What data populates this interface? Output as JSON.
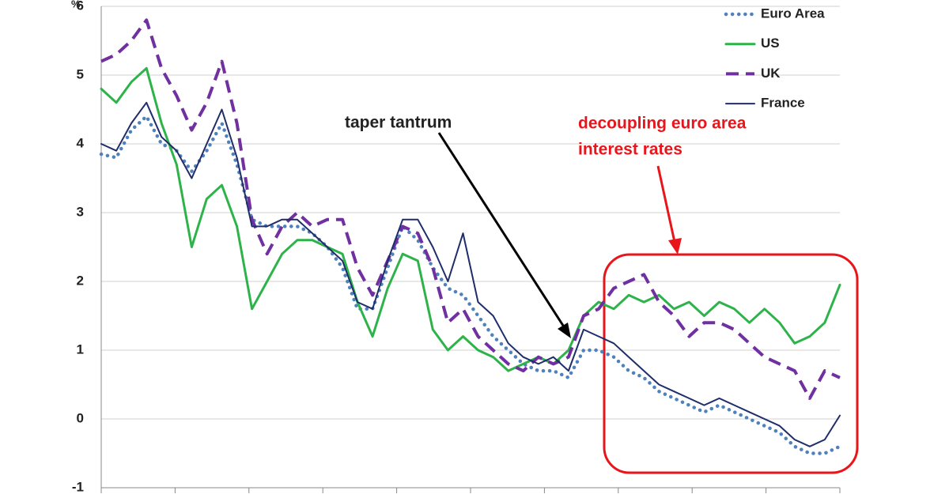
{
  "chart_data": {
    "type": "line",
    "ylabel": "%",
    "ylim": [
      -1,
      6
    ],
    "yticks": [
      -1,
      0,
      1,
      2,
      3,
      4,
      5,
      6
    ],
    "grid": true,
    "legend": "upper right",
    "series": [
      {
        "name": "Euro Area",
        "color": "#4f81bd",
        "style": "dotted",
        "values": [
          3.85,
          3.8,
          4.2,
          4.4,
          4.0,
          3.9,
          3.6,
          3.9,
          4.3,
          3.7,
          2.9,
          2.8,
          2.8,
          2.8,
          2.7,
          2.5,
          2.2,
          1.6,
          1.6,
          2.2,
          2.8,
          2.6,
          2.2,
          1.9,
          1.8,
          1.5,
          1.2,
          1.0,
          0.8,
          0.7,
          0.7,
          0.6,
          1.0,
          1.0,
          0.9,
          0.7,
          0.6,
          0.4,
          0.3,
          0.2,
          0.1,
          0.2,
          0.1,
          0.0,
          -0.1,
          -0.2,
          -0.4,
          -0.5,
          -0.5,
          -0.4
        ]
      },
      {
        "name": "US",
        "color": "#2db34a",
        "style": "solid",
        "values": [
          4.8,
          4.6,
          4.9,
          5.1,
          4.3,
          3.7,
          2.5,
          3.2,
          3.4,
          2.8,
          1.6,
          2.0,
          2.4,
          2.6,
          2.6,
          2.5,
          2.4,
          1.7,
          1.2,
          1.9,
          2.4,
          2.3,
          1.3,
          1.0,
          1.2,
          1.0,
          0.9,
          0.7,
          0.8,
          0.9,
          0.8,
          1.0,
          1.5,
          1.7,
          1.6,
          1.8,
          1.7,
          1.8,
          1.6,
          1.7,
          1.5,
          1.7,
          1.6,
          1.4,
          1.6,
          1.4,
          1.1,
          1.2,
          1.4,
          1.95
        ]
      },
      {
        "name": "UK",
        "color": "#7030a0",
        "style": "dashed",
        "values": [
          5.2,
          5.3,
          5.5,
          5.8,
          5.1,
          4.7,
          4.2,
          4.6,
          5.2,
          4.3,
          2.9,
          2.4,
          2.8,
          3.0,
          2.8,
          2.9,
          2.9,
          2.2,
          1.8,
          2.3,
          2.8,
          2.7,
          2.2,
          1.4,
          1.6,
          1.2,
          1.0,
          0.8,
          0.7,
          0.9,
          0.8,
          0.9,
          1.5,
          1.6,
          1.9,
          2.0,
          2.1,
          1.7,
          1.5,
          1.2,
          1.4,
          1.4,
          1.3,
          1.1,
          0.9,
          0.8,
          0.7,
          0.3,
          0.7,
          0.6
        ]
      },
      {
        "name": "France",
        "color": "#1f2d6b",
        "style": "solid",
        "values": [
          4.0,
          3.9,
          4.3,
          4.6,
          4.1,
          3.9,
          3.5,
          4.0,
          4.5,
          3.8,
          2.8,
          2.8,
          2.9,
          2.9,
          2.7,
          2.5,
          2.3,
          1.7,
          1.6,
          2.3,
          2.9,
          2.9,
          2.5,
          2.0,
          2.7,
          1.7,
          1.5,
          1.1,
          0.9,
          0.8,
          0.9,
          0.7,
          1.3,
          1.2,
          1.1,
          0.9,
          0.7,
          0.5,
          0.4,
          0.3,
          0.2,
          0.3,
          0.2,
          0.1,
          0.0,
          -0.1,
          -0.3,
          -0.4,
          -0.3,
          0.05
        ]
      }
    ],
    "annotations": [
      "taper tantrum",
      "decoupling euro area",
      "interest rates"
    ]
  }
}
